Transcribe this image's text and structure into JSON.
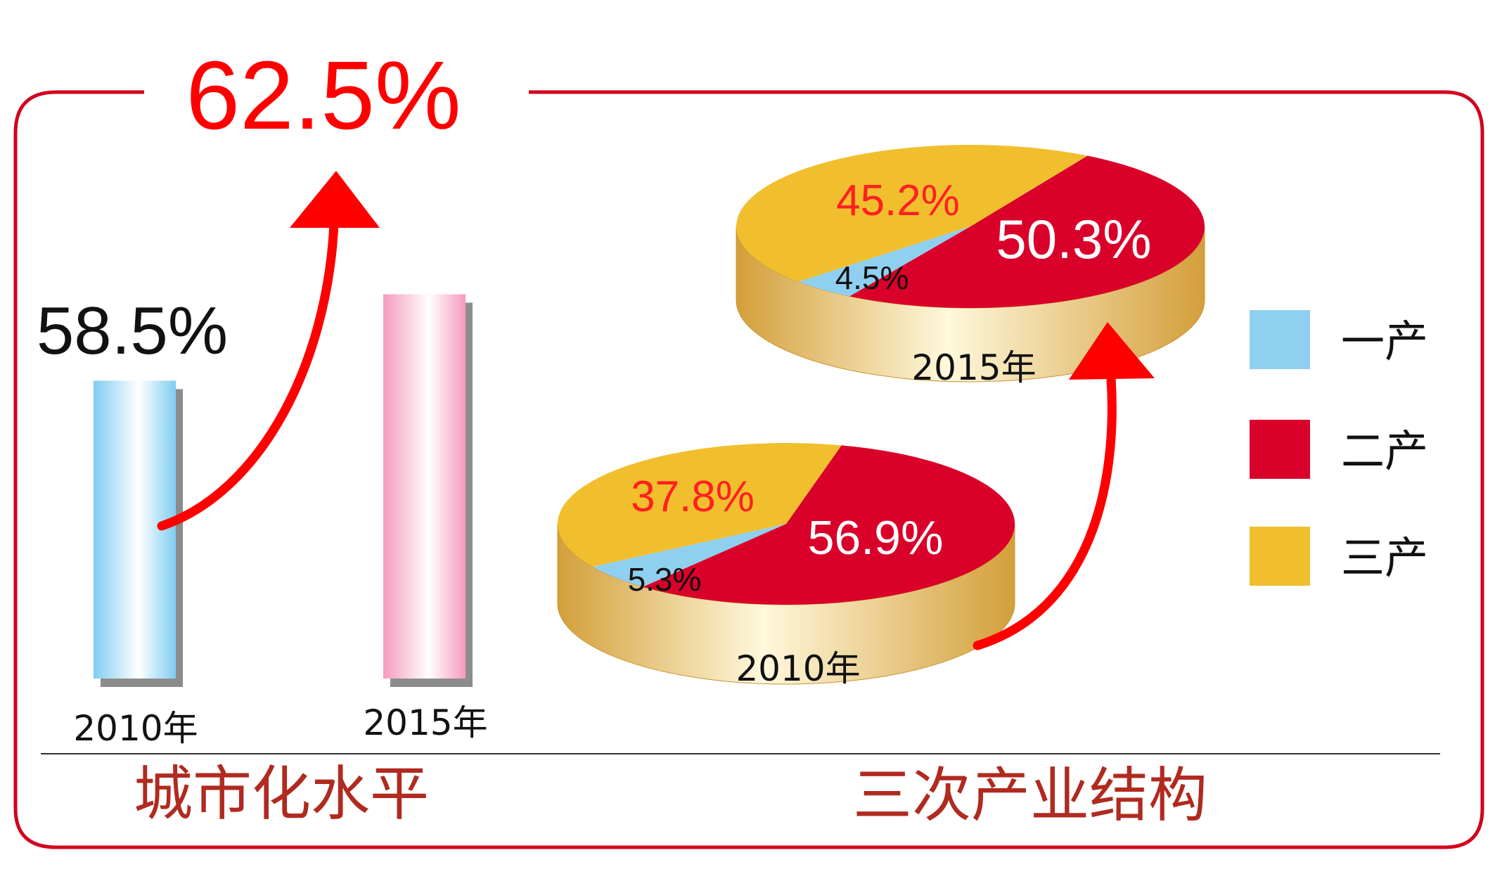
{
  "colors": {
    "frame": "#d2001e",
    "primary": "#8fd0f0",
    "secondary": "#d9002a",
    "tertiary": "#f1bf2e",
    "pie_side": "#d9a63e",
    "title_text": "#b02a1f",
    "highlight_text": "#ff0000"
  },
  "chart_data": [
    {
      "type": "bar",
      "title": "城市化水平",
      "categories": [
        "2010年",
        "2015年"
      ],
      "values": [
        58.5,
        62.5
      ],
      "value_labels": [
        "58.5%",
        "62.5%"
      ],
      "bar_colors": [
        "#8fd0f0",
        "#f4a6c3"
      ],
      "arrow": "from 2010年 to 2015年"
    },
    {
      "type": "pie",
      "title": "三次产业结构",
      "legend": [
        "一产",
        "二产",
        "三产"
      ],
      "legend_colors": [
        "#8fd0f0",
        "#d9002a",
        "#f1bf2e"
      ],
      "legend_position": "right",
      "pies": [
        {
          "year_label": "2010年",
          "slices": [
            {
              "name": "一产",
              "value": 5.3,
              "label": "5.3%"
            },
            {
              "name": "二产",
              "value": 56.9,
              "label": "56.9%"
            },
            {
              "name": "三产",
              "value": 37.8,
              "label": "37.8%"
            }
          ]
        },
        {
          "year_label": "2015年",
          "slices": [
            {
              "name": "一产",
              "value": 4.5,
              "label": "4.5%"
            },
            {
              "name": "二产",
              "value": 50.3,
              "label": "50.3%"
            },
            {
              "name": "三产",
              "value": 45.2,
              "label": "45.2%"
            }
          ]
        }
      ],
      "arrow": "from 2010年 to 2015年"
    }
  ]
}
